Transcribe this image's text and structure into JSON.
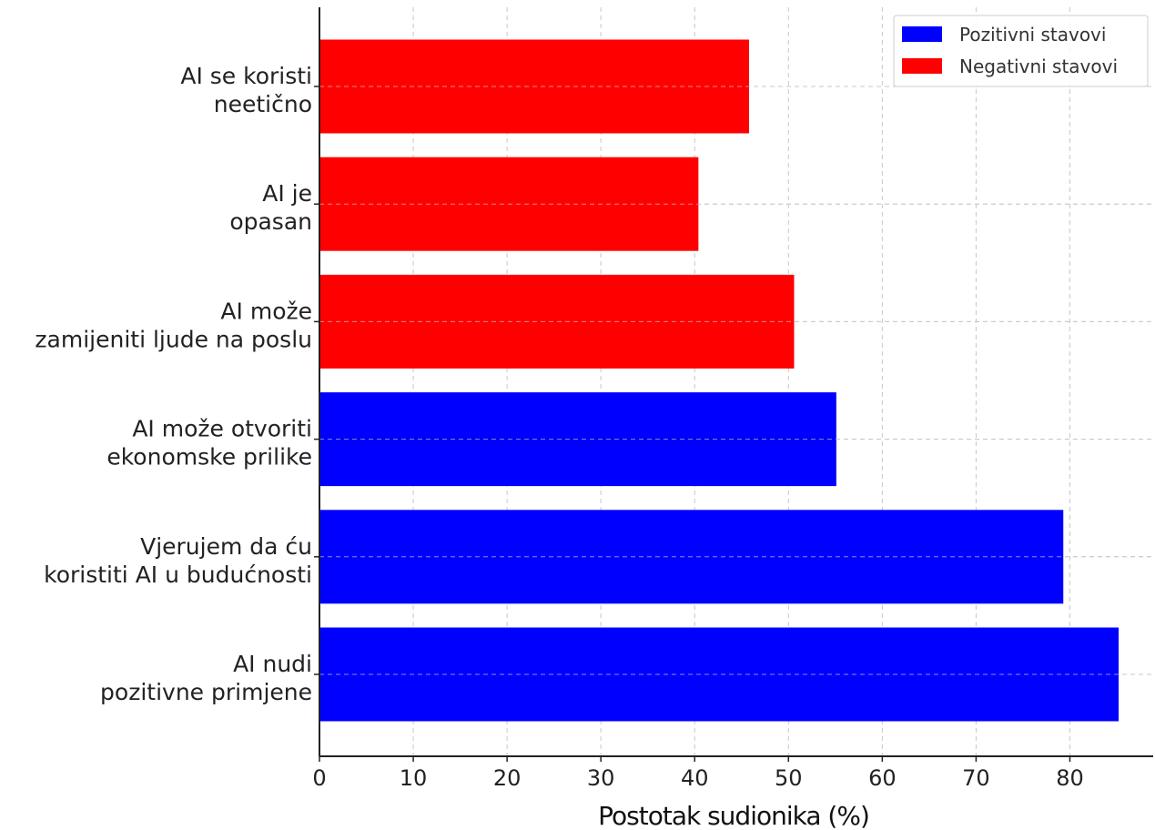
{
  "chart_data": {
    "type": "bar",
    "orientation": "horizontal",
    "categories": [
      [
        "AI nudi",
        "pozitivne primjene"
      ],
      [
        "Vjerujem da ću",
        "koristiti AI u budućnosti"
      ],
      [
        "AI može otvoriti",
        "ekonomske prilike"
      ],
      [
        "AI može",
        "zamijeniti ljude na poslu"
      ],
      [
        "AI je",
        "opasan"
      ],
      [
        "AI se koristi",
        "neetično"
      ]
    ],
    "values": [
      85.2,
      79.3,
      55.1,
      50.6,
      40.4,
      45.8
    ],
    "groups": [
      "positive",
      "positive",
      "positive",
      "negative",
      "negative",
      "negative"
    ],
    "series": [
      {
        "key": "positive",
        "name": "Pozitivni stavovi",
        "color": "#0000ff"
      },
      {
        "key": "negative",
        "name": "Negativni stavovi",
        "color": "#ff0000"
      }
    ],
    "xlabel": "Postotak sudionika (%)",
    "ylabel": "",
    "xlim": [
      0,
      89
    ],
    "xticks": [
      0,
      10,
      20,
      30,
      40,
      50,
      60,
      70,
      80
    ],
    "grid": true,
    "legend_position": "top-right"
  }
}
